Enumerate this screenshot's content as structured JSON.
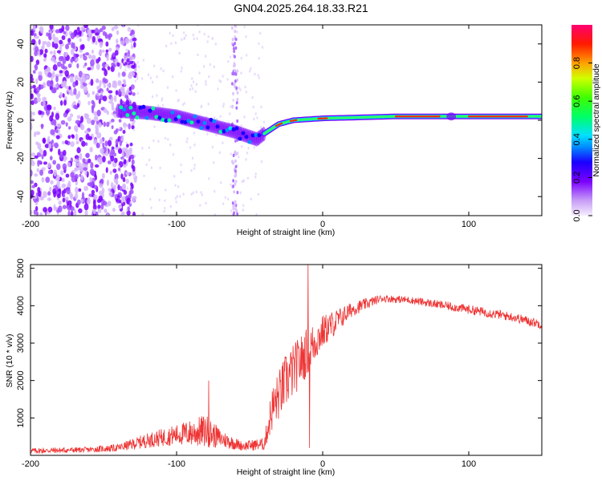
{
  "title": "GN04.2025.264.18.33.R21",
  "chart_data": [
    {
      "type": "heatmap",
      "xlabel": "Height of straight line (km)",
      "ylabel": "Frequency (Hz)",
      "xlim": [
        -200,
        150
      ],
      "ylim": [
        -50,
        50
      ],
      "xticks": [
        -200,
        -100,
        0,
        100
      ],
      "yticks": [
        -40,
        -20,
        0,
        20,
        40
      ],
      "colorbar": {
        "label": "Normalized spectral amplitude",
        "range": [
          0,
          1
        ],
        "ticks": [
          0.0,
          0.2,
          0.4,
          0.6,
          0.8
        ]
      },
      "features": {
        "noise_region_x": [
          -200,
          -140
        ],
        "signal_start_x": -140,
        "signal_track": [
          {
            "x": -140,
            "f": 5
          },
          {
            "x": -120,
            "f": 4
          },
          {
            "x": -100,
            "f": 2
          },
          {
            "x": -80,
            "f": -2
          },
          {
            "x": -60,
            "f": -6
          },
          {
            "x": -45,
            "f": -10
          },
          {
            "x": -40,
            "f": -7
          },
          {
            "x": -30,
            "f": -2
          },
          {
            "x": -20,
            "f": 0
          },
          {
            "x": 0,
            "f": 1
          },
          {
            "x": 50,
            "f": 2
          },
          {
            "x": 100,
            "f": 2
          },
          {
            "x": 150,
            "f": 2
          }
        ],
        "vertical_streak_x": -60
      }
    },
    {
      "type": "line",
      "xlabel": "Height of straight line (km)",
      "ylabel": "SNR (10 * v/v)",
      "xlim": [
        -200,
        150
      ],
      "ylim": [
        0,
        5100
      ],
      "xticks": [
        -200,
        -100,
        0,
        100
      ],
      "yticks": [
        1000,
        2000,
        3000,
        4000,
        5000
      ],
      "color": "#ee3333",
      "series": [
        {
          "name": "SNR",
          "envelope": [
            {
              "x": -200,
              "base": 120,
              "amp": 150
            },
            {
              "x": -160,
              "base": 150,
              "amp": 150
            },
            {
              "x": -140,
              "base": 200,
              "amp": 200
            },
            {
              "x": -120,
              "base": 400,
              "amp": 400
            },
            {
              "x": -100,
              "base": 550,
              "amp": 550
            },
            {
              "x": -80,
              "base": 650,
              "amp": 900
            },
            {
              "x": -70,
              "base": 450,
              "amp": 500
            },
            {
              "x": -55,
              "base": 250,
              "amp": 250
            },
            {
              "x": -40,
              "base": 300,
              "amp": 350
            },
            {
              "x": -35,
              "base": 1200,
              "amp": 1200
            },
            {
              "x": -25,
              "base": 2000,
              "amp": 1500
            },
            {
              "x": -10,
              "base": 2800,
              "amp": 1300
            },
            {
              "x": 0,
              "base": 3300,
              "amp": 900
            },
            {
              "x": 20,
              "base": 3900,
              "amp": 400
            },
            {
              "x": 40,
              "base": 4200,
              "amp": 200
            },
            {
              "x": 60,
              "base": 4150,
              "amp": 200
            },
            {
              "x": 100,
              "base": 3900,
              "amp": 250
            },
            {
              "x": 130,
              "base": 3700,
              "amp": 250
            },
            {
              "x": 150,
              "base": 3500,
              "amp": 250
            }
          ],
          "spikes": [
            {
              "x": -10,
              "y": 5100
            },
            {
              "x": -9,
              "y": 200
            },
            {
              "x": -78,
              "y": 2000
            }
          ]
        }
      ]
    }
  ]
}
